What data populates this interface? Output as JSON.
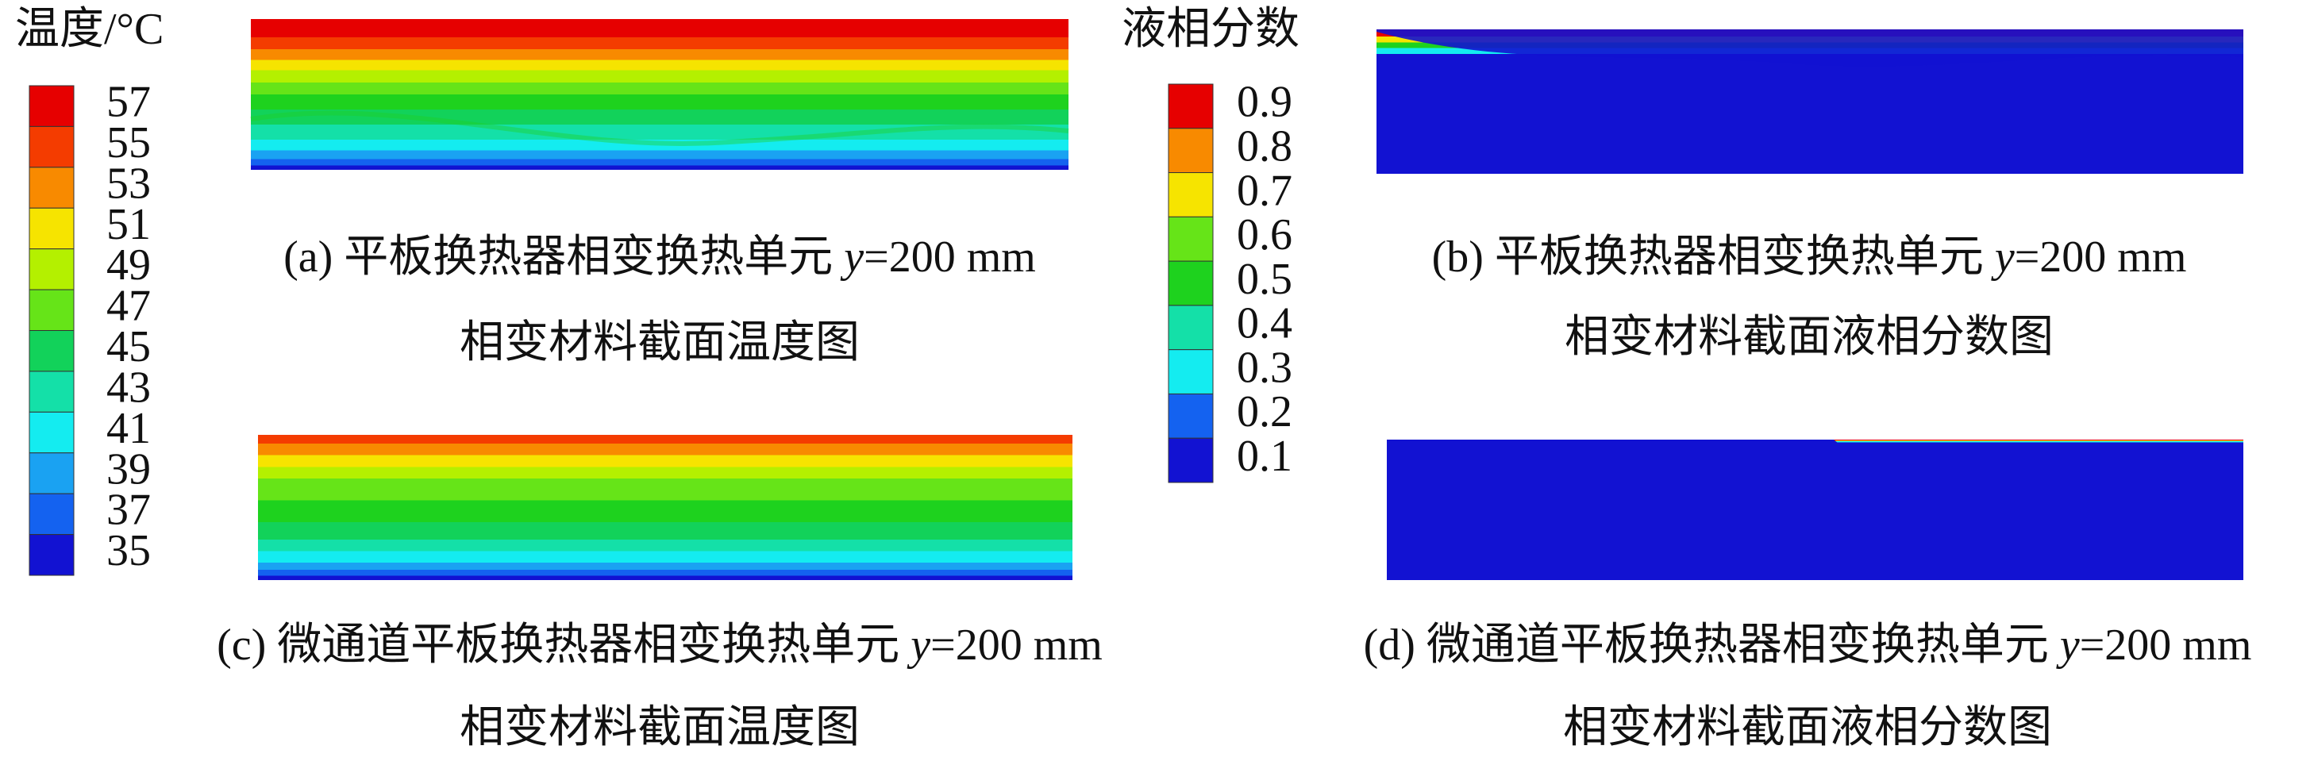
{
  "temperature_legend": {
    "title": "温度/°C",
    "ticks": [
      "57",
      "55",
      "53",
      "51",
      "49",
      "47",
      "45",
      "43",
      "41",
      "39",
      "37",
      "35"
    ]
  },
  "liquid_legend": {
    "title": "液相分数",
    "ticks": [
      "0.9",
      "0.8",
      "0.7",
      "0.6",
      "0.5",
      "0.4",
      "0.3",
      "0.2",
      "0.1"
    ]
  },
  "panels": [
    {
      "label": "(a) 平板换热器相变换热单元 ",
      "variable": "y",
      "value": "=200 mm",
      "subtitle": "相变材料截面温度图"
    },
    {
      "label": "(b) 平板换热器相变换热单元 ",
      "variable": "y",
      "value": "=200 mm",
      "subtitle": "相变材料截面液相分数图"
    },
    {
      "label": "(c) 微通道平板换热器相变换热单元 ",
      "variable": "y",
      "value": "=200 mm",
      "subtitle": "相变材料截面温度图"
    },
    {
      "label": "(d) 微通道平板换热器相变换热单元 ",
      "variable": "y",
      "value": "=200 mm",
      "subtitle": "相变材料截面液相分数图"
    }
  ]
}
